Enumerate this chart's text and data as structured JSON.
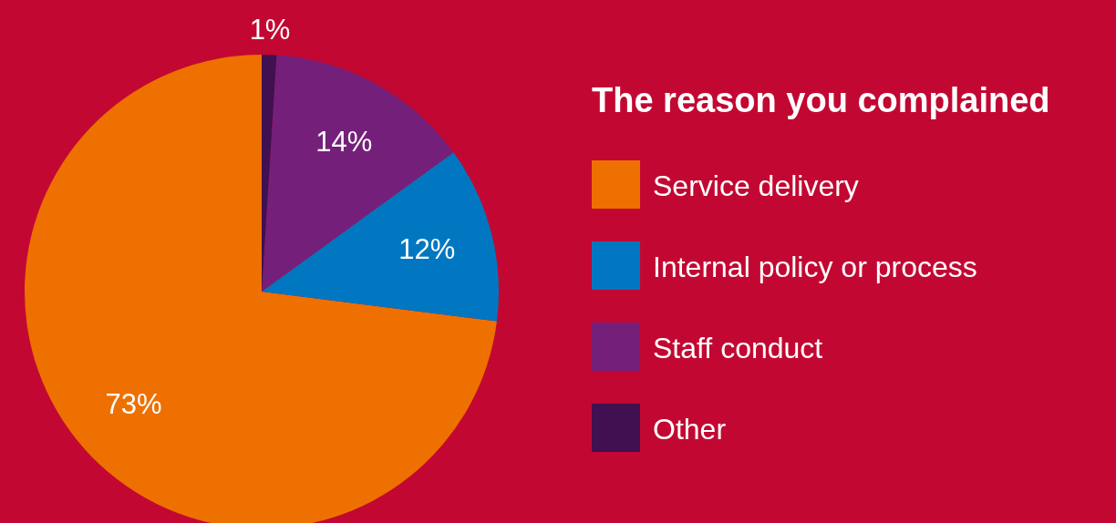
{
  "chart_data": {
    "type": "pie",
    "legend_title": "The reason you complained",
    "categories": [
      "Service delivery",
      "Internal policy or process",
      "Staff conduct",
      "Other"
    ],
    "values": [
      73,
      12,
      14,
      1
    ],
    "colors": [
      "#ee7000",
      "#0077c0",
      "#74207a",
      "#401050"
    ],
    "value_labels": [
      "73%",
      "12%",
      "14%",
      "1%"
    ],
    "legend": "right"
  }
}
